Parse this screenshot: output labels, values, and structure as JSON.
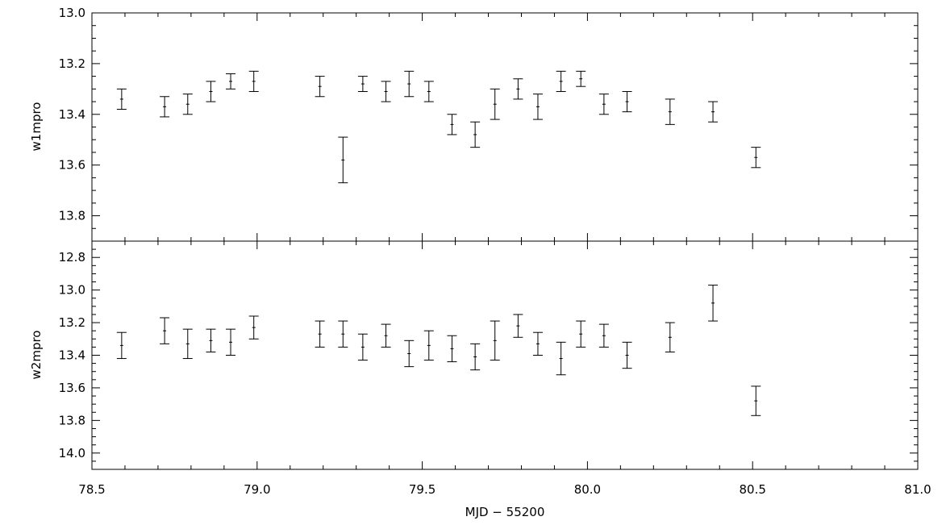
{
  "chart_data": [
    {
      "type": "scatter",
      "panel": "top",
      "xlabel": "",
      "ylabel": "w1mpro",
      "xlim": [
        78.5,
        81.0
      ],
      "ylim": [
        13.0,
        13.9
      ],
      "y_inverted": true,
      "error_bars": true,
      "x_ticks": [
        78.5,
        79.0,
        79.5,
        80.0,
        80.5,
        81.0
      ],
      "y_ticks": [
        "13.0",
        "13.2",
        "13.4",
        "13.6",
        "13.8"
      ],
      "series": [
        {
          "points": [
            {
              "x": 78.59,
              "y": 13.34,
              "err": 0.04
            },
            {
              "x": 78.72,
              "y": 13.37,
              "err": 0.04
            },
            {
              "x": 78.79,
              "y": 13.36,
              "err": 0.04
            },
            {
              "x": 78.86,
              "y": 13.31,
              "err": 0.04
            },
            {
              "x": 78.92,
              "y": 13.27,
              "err": 0.03
            },
            {
              "x": 78.99,
              "y": 13.27,
              "err": 0.04
            },
            {
              "x": 79.19,
              "y": 13.29,
              "err": 0.04
            },
            {
              "x": 79.26,
              "y": 13.58,
              "err": 0.09
            },
            {
              "x": 79.32,
              "y": 13.28,
              "err": 0.03
            },
            {
              "x": 79.39,
              "y": 13.31,
              "err": 0.04
            },
            {
              "x": 79.46,
              "y": 13.28,
              "err": 0.05
            },
            {
              "x": 79.52,
              "y": 13.31,
              "err": 0.04
            },
            {
              "x": 79.59,
              "y": 13.44,
              "err": 0.04
            },
            {
              "x": 79.66,
              "y": 13.48,
              "err": 0.05
            },
            {
              "x": 79.72,
              "y": 13.36,
              "err": 0.06
            },
            {
              "x": 79.79,
              "y": 13.3,
              "err": 0.04
            },
            {
              "x": 79.85,
              "y": 13.37,
              "err": 0.05
            },
            {
              "x": 79.92,
              "y": 13.27,
              "err": 0.04
            },
            {
              "x": 79.98,
              "y": 13.26,
              "err": 0.03
            },
            {
              "x": 80.05,
              "y": 13.36,
              "err": 0.04
            },
            {
              "x": 80.12,
              "y": 13.35,
              "err": 0.04
            },
            {
              "x": 80.25,
              "y": 13.39,
              "err": 0.05
            },
            {
              "x": 80.38,
              "y": 13.39,
              "err": 0.04
            },
            {
              "x": 80.51,
              "y": 13.57,
              "err": 0.04
            }
          ]
        }
      ]
    },
    {
      "type": "scatter",
      "panel": "bottom",
      "xlabel": "MJD − 55200",
      "ylabel": "w2mpro",
      "xlim": [
        78.5,
        81.0
      ],
      "ylim": [
        12.7,
        14.1
      ],
      "y_inverted": true,
      "error_bars": true,
      "x_ticks": [
        "78.5",
        "79.0",
        "79.5",
        "80.0",
        "80.5",
        "81.0"
      ],
      "y_ticks": [
        "12.8",
        "13.0",
        "13.2",
        "13.4",
        "13.6",
        "13.8",
        "14.0"
      ],
      "series": [
        {
          "points": [
            {
              "x": 78.59,
              "y": 13.34,
              "err": 0.08
            },
            {
              "x": 78.72,
              "y": 13.25,
              "err": 0.08
            },
            {
              "x": 78.79,
              "y": 13.33,
              "err": 0.09
            },
            {
              "x": 78.86,
              "y": 13.31,
              "err": 0.07
            },
            {
              "x": 78.92,
              "y": 13.32,
              "err": 0.08
            },
            {
              "x": 78.99,
              "y": 13.23,
              "err": 0.07
            },
            {
              "x": 79.19,
              "y": 13.27,
              "err": 0.08
            },
            {
              "x": 79.26,
              "y": 13.27,
              "err": 0.08
            },
            {
              "x": 79.32,
              "y": 13.35,
              "err": 0.08
            },
            {
              "x": 79.39,
              "y": 13.28,
              "err": 0.07
            },
            {
              "x": 79.46,
              "y": 13.39,
              "err": 0.08
            },
            {
              "x": 79.52,
              "y": 13.34,
              "err": 0.09
            },
            {
              "x": 79.59,
              "y": 13.36,
              "err": 0.08
            },
            {
              "x": 79.66,
              "y": 13.41,
              "err": 0.08
            },
            {
              "x": 79.72,
              "y": 13.31,
              "err": 0.12
            },
            {
              "x": 79.79,
              "y": 13.22,
              "err": 0.07
            },
            {
              "x": 79.85,
              "y": 13.33,
              "err": 0.07
            },
            {
              "x": 79.92,
              "y": 13.42,
              "err": 0.1
            },
            {
              "x": 79.98,
              "y": 13.27,
              "err": 0.08
            },
            {
              "x": 80.05,
              "y": 13.28,
              "err": 0.07
            },
            {
              "x": 80.12,
              "y": 13.4,
              "err": 0.08
            },
            {
              "x": 80.25,
              "y": 13.29,
              "err": 0.09
            },
            {
              "x": 80.38,
              "y": 13.08,
              "err": 0.11
            },
            {
              "x": 80.51,
              "y": 13.68,
              "err": 0.09
            }
          ]
        }
      ]
    }
  ]
}
